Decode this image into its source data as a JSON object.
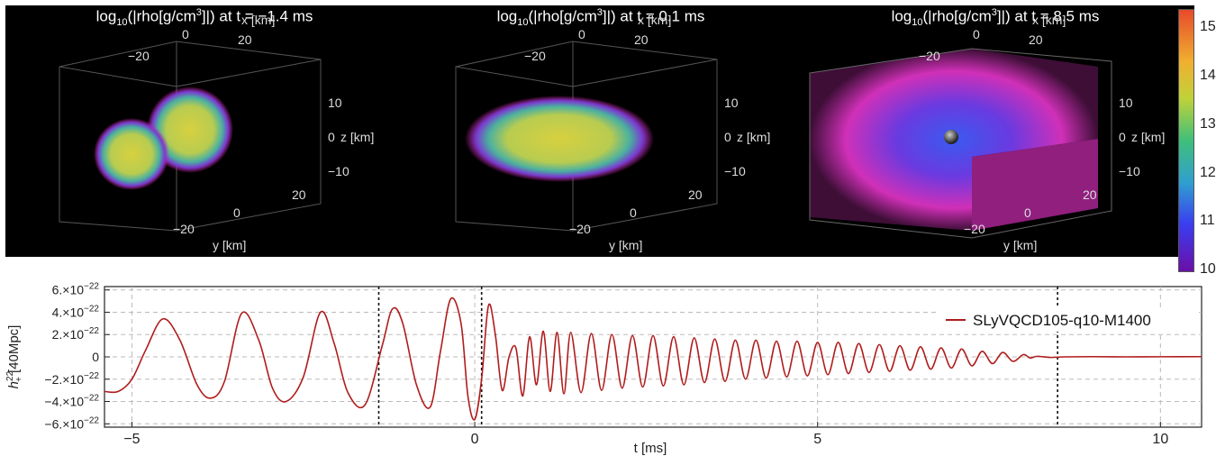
{
  "panels": [
    {
      "title_pre": "log",
      "title_sub": "10",
      "title_mid": "(|rho[g/cm",
      "title_sup": "3",
      "title_post": "]|) at t = −1.4 ms",
      "x_label": "x [km]",
      "y_label": "y [km]",
      "z_label": "z [km]",
      "x_ticks": [
        "−20",
        "0",
        "20"
      ],
      "y_ticks": [
        "0",
        "20",
        "−20"
      ],
      "z_ticks": [
        "10",
        "0",
        "−10"
      ]
    },
    {
      "title_pre": "log",
      "title_sub": "10",
      "title_mid": "(|rho[g/cm",
      "title_sup": "3",
      "title_post": "]|) at t = 0.1 ms",
      "x_label": "x [km]",
      "y_label": "y [km]",
      "z_label": "z [km]",
      "x_ticks": [
        "−20",
        "0",
        "20"
      ],
      "y_ticks": [
        "0",
        "20",
        "−20"
      ],
      "z_ticks": [
        "10",
        "0",
        "−10"
      ]
    },
    {
      "title_pre": "log",
      "title_sub": "10",
      "title_mid": "(|rho[g/cm",
      "title_sup": "3",
      "title_post": "]|) at t = 8.5 ms",
      "x_label": "x [km]",
      "y_label": "y [km]",
      "z_label": "z [km]",
      "x_ticks": [
        "−20",
        "0",
        "20"
      ],
      "y_ticks": [
        "0",
        "20",
        "−20"
      ],
      "z_ticks": [
        "10",
        "0",
        "−10"
      ]
    }
  ],
  "colorbar": {
    "ticks": [
      "15",
      "14",
      "13",
      "12",
      "11",
      "10"
    ],
    "range": [
      10,
      15.4
    ]
  },
  "chart_data": {
    "type": "line",
    "xlabel": "t [ms]",
    "ylabel_main": "h",
    "ylabel_sup": "22",
    "ylabel_sub": "+",
    "ylabel_post": "[40Mpc]",
    "xlim": [
      -5.4,
      10.6
    ],
    "ylim": [
      -6.3e-22,
      6.3e-22
    ],
    "x_ticks": [
      {
        "v": -5,
        "label": "−5"
      },
      {
        "v": 0,
        "label": "0"
      },
      {
        "v": 5,
        "label": "5"
      },
      {
        "v": 10,
        "label": "10"
      }
    ],
    "y_ticks": [
      {
        "v": 6e-22,
        "label": "6.×10",
        "exp": "−22"
      },
      {
        "v": 4e-22,
        "label": "4.×10",
        "exp": "−22"
      },
      {
        "v": 2e-22,
        "label": "2.×10",
        "exp": "−22"
      },
      {
        "v": 0,
        "label": "0",
        "exp": ""
      },
      {
        "v": -2e-22,
        "label": "−2.×10",
        "exp": "−22"
      },
      {
        "v": -4e-22,
        "label": "−4.×10",
        "exp": "−22"
      },
      {
        "v": -6e-22,
        "label": "−6.×10",
        "exp": "−22"
      }
    ],
    "vlines": [
      -1.4,
      0.1,
      8.5
    ],
    "grid": true,
    "legend_position": "top-right",
    "series": [
      {
        "name": "SLyVQCD105-q10-M1400",
        "color": "#b01c1c",
        "x": [
          -5.4,
          -5.2,
          -5.0,
          -4.8,
          -4.55,
          -4.3,
          -4.05,
          -3.85,
          -3.65,
          -3.4,
          -3.15,
          -2.95,
          -2.75,
          -2.5,
          -2.25,
          -2.05,
          -1.85,
          -1.6,
          -1.35,
          -1.2,
          -1.05,
          -0.85,
          -0.65,
          -0.5,
          -0.35,
          -0.2,
          -0.1,
          0.0,
          0.1,
          0.2,
          0.3,
          0.4,
          0.5,
          0.6,
          0.7,
          0.8,
          0.9,
          1.0,
          1.1,
          1.2,
          1.3,
          1.4,
          1.55,
          1.7,
          1.85,
          2.0,
          2.15,
          2.3,
          2.45,
          2.6,
          2.75,
          2.9,
          3.05,
          3.2,
          3.35,
          3.5,
          3.65,
          3.8,
          3.95,
          4.1,
          4.25,
          4.4,
          4.55,
          4.7,
          4.85,
          5.0,
          5.15,
          5.3,
          5.45,
          5.6,
          5.75,
          5.9,
          6.05,
          6.2,
          6.35,
          6.5,
          6.65,
          6.8,
          6.95,
          7.1,
          7.25,
          7.4,
          7.55,
          7.7,
          7.85,
          8.0,
          8.1,
          8.2,
          8.4,
          8.6,
          9.0,
          9.5,
          10.0,
          10.6
        ],
        "y": [
          -3.1e-22,
          -3.1e-22,
          -2e-22,
          6e-23,
          3.4e-22,
          1.5e-22,
          -2.5e-22,
          -3.7e-22,
          -2.2e-22,
          3.9e-22,
          1.5e-22,
          -2.8e-22,
          -4e-22,
          -1.8e-22,
          4e-22,
          1.2e-22,
          -3.2e-22,
          -4.3e-22,
          1e-22,
          4.3e-22,
          3e-22,
          -2.5e-22,
          -4.5e-22,
          5e-23,
          5.2e-22,
          3e-22,
          -3.5e-22,
          -5.6e-22,
          -2e-22,
          4.6e-22,
          2e-22,
          -3e-22,
          0.0,
          8e-23,
          -3.5e-22,
          1.8e-22,
          -2.5e-22,
          2.3e-22,
          -3.1e-22,
          2.2e-22,
          -3.3e-22,
          2.2e-22,
          -3.2e-22,
          2.1e-22,
          -3e-22,
          2e-22,
          -2.8e-22,
          1.9e-22,
          -2.7e-22,
          1.9e-22,
          -2.6e-22,
          1.8e-22,
          -2.5e-22,
          1.7e-22,
          -2.3e-22,
          1.6e-22,
          -2.2e-22,
          1.5e-22,
          -2e-22,
          1.5e-22,
          -1.9e-22,
          1.4e-22,
          -1.8e-22,
          1.4e-22,
          -1.7e-22,
          1.3e-22,
          -1.6e-22,
          1.3e-22,
          -1.5e-22,
          1.2e-22,
          -1.4e-22,
          1.1e-22,
          -1.3e-22,
          1e-22,
          -1.2e-22,
          9e-23,
          -1.1e-22,
          8e-23,
          -1e-22,
          7e-23,
          -8e-23,
          5e-23,
          -6e-23,
          4e-23,
          -4e-23,
          2e-23,
          -1e-23,
          5e-24,
          -5e-24,
          0.0,
          2e-24,
          0.0,
          1e-24,
          2e-24
        ]
      }
    ]
  }
}
